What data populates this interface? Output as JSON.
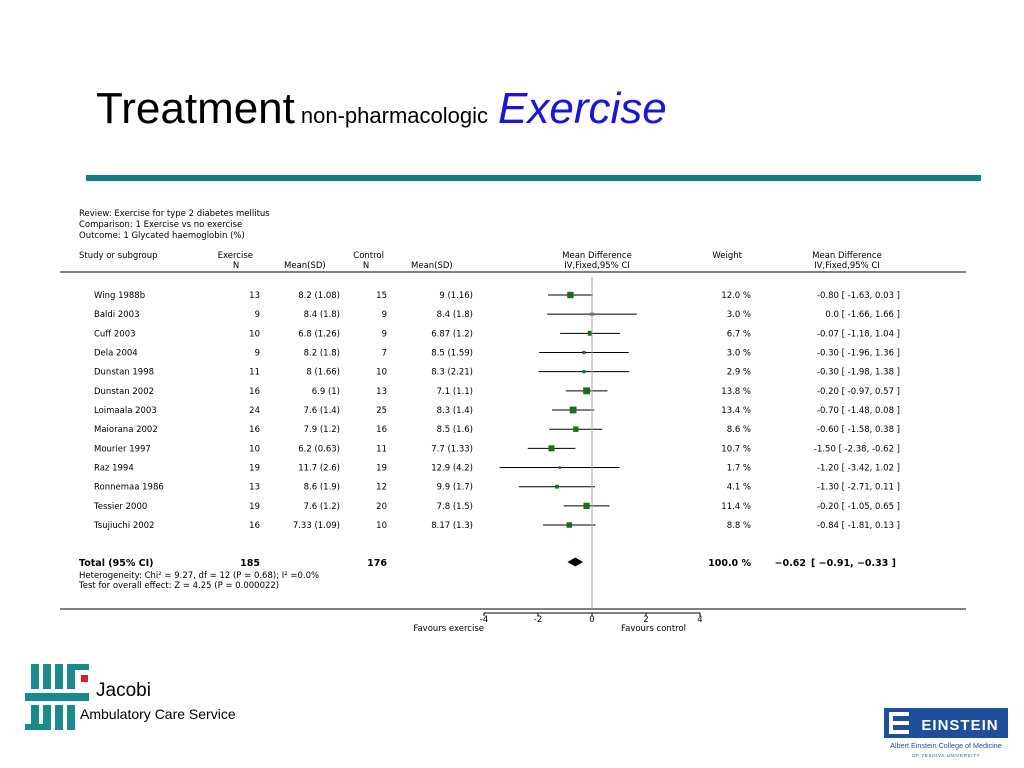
{
  "slide": {
    "title_main": "Treatment",
    "title_sub": "non-pharmacologic",
    "title_accent": "Exercise"
  },
  "review": {
    "line1": "Review:  Exercise for type 2 diabetes mellitus",
    "line2": "Comparison:  1 Exercise vs no exercise",
    "line3": "Outcome:  1 Glycated haemoglobin (%)"
  },
  "headers": {
    "study": "Study or subgroup",
    "exercise": "Exercise",
    "exercise_n": "N",
    "exercise_mean": "Mean(SD)",
    "control": "Control",
    "control_n": "N",
    "control_mean": "Mean(SD)",
    "md": "Mean Difference",
    "md_method": "IV,Fixed,95% CI",
    "weight": "Weight",
    "md2": "Mean Difference",
    "md2_method": "IV,Fixed,95% CI"
  },
  "chart_data": {
    "type": "forest",
    "axis": {
      "xlim": [
        -4,
        4
      ],
      "ticks": [
        -4,
        -2,
        0,
        2,
        4
      ],
      "tick_labels": [
        "-4",
        "-2",
        "0",
        "2",
        "4"
      ],
      "left_label": "Favours exercise",
      "right_label": "Favours control"
    },
    "studies": [
      {
        "name": "Wing 1988b",
        "exN": "13",
        "exMean": "8.2 (1.08)",
        "ctN": "15",
        "ctMean": "9 (1.16)",
        "weight": "12.0 %",
        "ci": "-0.80 [ -1.63, 0.03 ]",
        "md": -0.8,
        "lo": -1.63,
        "hi": 0.03,
        "w": 12.0
      },
      {
        "name": "Baldi 2003",
        "exN": "9",
        "exMean": "8.4 (1.8)",
        "ctN": "9",
        "ctMean": "8.4 (1.8)",
        "weight": "3.0 %",
        "ci": "0.0 [ -1.66, 1.66 ]",
        "md": 0.0,
        "lo": -1.66,
        "hi": 1.66,
        "w": 3.0
      },
      {
        "name": "Cuff 2003",
        "exN": "10",
        "exMean": "6.8 (1.26)",
        "ctN": "9",
        "ctMean": "6.87 (1.2)",
        "weight": "6.7 %",
        "ci": "-0.07 [ -1.18, 1.04 ]",
        "md": -0.07,
        "lo": -1.18,
        "hi": 1.04,
        "w": 6.7
      },
      {
        "name": "Dela 2004",
        "exN": "9",
        "exMean": "8.2 (1.8)",
        "ctN": "7",
        "ctMean": "8.5 (1.59)",
        "weight": "3.0 %",
        "ci": "-0.30 [ -1.96, 1.36 ]",
        "md": -0.3,
        "lo": -1.96,
        "hi": 1.36,
        "w": 3.0
      },
      {
        "name": "Dunstan 1998",
        "exN": "11",
        "exMean": "8 (1.66)",
        "ctN": "10",
        "ctMean": "8.3 (2.21)",
        "weight": "2.9 %",
        "ci": "-0.30 [ -1.98, 1.38 ]",
        "md": -0.3,
        "lo": -1.98,
        "hi": 1.38,
        "w": 2.9
      },
      {
        "name": "Dunstan 2002",
        "exN": "16",
        "exMean": "6.9 (1)",
        "ctN": "13",
        "ctMean": "7.1 (1.1)",
        "weight": "13.8 %",
        "ci": "-0.20 [ -0.97, 0.57 ]",
        "md": -0.2,
        "lo": -0.97,
        "hi": 0.57,
        "w": 13.8
      },
      {
        "name": "Loimaala 2003",
        "exN": "24",
        "exMean": "7.6 (1.4)",
        "ctN": "25",
        "ctMean": "8.3 (1.4)",
        "weight": "13.4 %",
        "ci": "-0.70 [ -1.48, 0.08 ]",
        "md": -0.7,
        "lo": -1.48,
        "hi": 0.08,
        "w": 13.4
      },
      {
        "name": "Maiorana 2002",
        "exN": "16",
        "exMean": "7.9 (1.2)",
        "ctN": "16",
        "ctMean": "8.5 (1.6)",
        "weight": "8.6 %",
        "ci": "-0.60 [ -1.58, 0.38 ]",
        "md": -0.6,
        "lo": -1.58,
        "hi": 0.38,
        "w": 8.6
      },
      {
        "name": "Mourier 1997",
        "exN": "10",
        "exMean": "6.2 (0.63)",
        "ctN": "11",
        "ctMean": "7.7 (1.33)",
        "weight": "10.7 %",
        "ci": "-1.50 [ -2.38, -0.62 ]",
        "md": -1.5,
        "lo": -2.38,
        "hi": -0.62,
        "w": 10.7
      },
      {
        "name": "Raz 1994",
        "exN": "19",
        "exMean": "11.7 (2.6)",
        "ctN": "19",
        "ctMean": "12.9 (4.2)",
        "weight": "1.7 %",
        "ci": "-1.20 [ -3.42, 1.02 ]",
        "md": -1.2,
        "lo": -3.42,
        "hi": 1.02,
        "w": 1.7
      },
      {
        "name": "Ronnemaa 1986",
        "exN": "13",
        "exMean": "8.6 (1.9)",
        "ctN": "12",
        "ctMean": "9.9 (1.7)",
        "weight": "4.1 %",
        "ci": "-1.30 [ -2.71, 0.11 ]",
        "md": -1.3,
        "lo": -2.71,
        "hi": 0.11,
        "w": 4.1
      },
      {
        "name": "Tessier 2000",
        "exN": "19",
        "exMean": "7.6 (1.2)",
        "ctN": "20",
        "ctMean": "7.8 (1.5)",
        "weight": "11.4 %",
        "ci": "-0.20 [ -1.05, 0.65 ]",
        "md": -0.2,
        "lo": -1.05,
        "hi": 0.65,
        "w": 11.4
      },
      {
        "name": "Tsujiuchi 2002",
        "exN": "16",
        "exMean": "7.33 (1.09)",
        "ctN": "10",
        "ctMean": "8.17 (1.3)",
        "weight": "8.8 %",
        "ci": "-0.84 [ -1.81, 0.13 ]",
        "md": -0.84,
        "lo": -1.81,
        "hi": 0.13,
        "w": 8.8
      }
    ],
    "total": {
      "name": "Total (95% CI)",
      "exN": "185",
      "ctN": "176",
      "weight": "100.0 %",
      "ci_est": "−0.62",
      "ci_bounds": "[ −0.91, −0.33 ]",
      "md": -0.62,
      "lo": -0.91,
      "hi": -0.33
    },
    "heterogeneity": "Heterogeneity: Chi² = 9.27, df = 12 (P = 0.68); I² =0.0%",
    "overall_effect": "Test for overall effect: Z = 4.25 (P = 0.000022)",
    "marker_color": "#1e6b1e"
  },
  "logos": {
    "jacobi_name": "Jacobi",
    "jacobi_sub": "Ambulatory Care Service",
    "einstein_name": "EINSTEIN",
    "einstein_sub1": "Albert Einstein College of Medicine",
    "einstein_sub2": "OF YESHIVA UNIVERSITY"
  },
  "colors": {
    "accent": "#1a16d6",
    "teal": "#0f7f80",
    "jacobi_teal": "#1b8a8a",
    "jacobi_red": "#d21f2b",
    "einstein_blue": "#1f4e9b"
  }
}
